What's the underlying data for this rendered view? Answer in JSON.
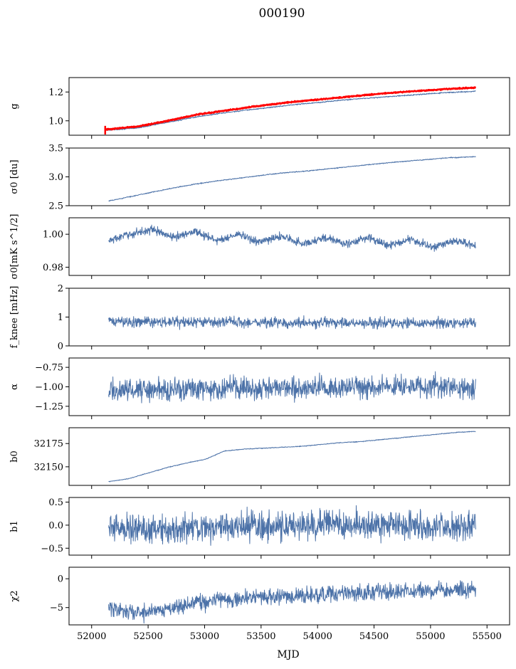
{
  "figure_title": "000190",
  "x_axis": {
    "label": "MJD",
    "range": [
      51800,
      55700
    ],
    "ticks": [
      "52000",
      "52500",
      "53000",
      "53500",
      "54000",
      "54500",
      "55000",
      "55500"
    ]
  },
  "colors": {
    "series": "#4c72a8",
    "fit": "#ff0000",
    "axes": "#000000"
  },
  "chart_data": [
    {
      "type": "line",
      "ylabel": "g",
      "ylim": [
        0.9,
        1.3
      ],
      "yticks": [
        {
          "v": 1.0,
          "label": "1.0"
        },
        {
          "v": 1.2,
          "label": "1.2"
        }
      ],
      "x_start": 52130,
      "x_end": 55400,
      "series": [
        {
          "values": [
            0.935,
            0.95,
            0.99,
            1.03,
            1.06,
            1.085,
            1.11,
            1.13,
            1.15,
            1.165,
            1.18,
            1.195,
            1.205
          ],
          "noise": 0.002
        },
        {
          "values": [
            0.94,
            0.96,
            1.0,
            1.045,
            1.075,
            1.105,
            1.13,
            1.15,
            1.17,
            1.19,
            1.205,
            1.22,
            1.23
          ],
          "noise": 0.002,
          "color": "fit",
          "width": 2.5
        }
      ]
    },
    {
      "type": "line",
      "ylabel": "σ0 [du]",
      "ylim": [
        2.5,
        3.5
      ],
      "yticks": [
        {
          "v": 2.5,
          "label": "2.5"
        },
        {
          "v": 3.0,
          "label": "3.0"
        },
        {
          "v": 3.5,
          "label": "3.5"
        }
      ],
      "x_start": 52150,
      "x_end": 55400,
      "series": [
        {
          "values": [
            2.58,
            2.68,
            2.78,
            2.87,
            2.94,
            3.0,
            3.06,
            3.1,
            3.15,
            3.2,
            3.25,
            3.29,
            3.33,
            3.35
          ],
          "noise": 0.004
        }
      ]
    },
    {
      "type": "line",
      "ylabel": "σ0[mK s^1/2]",
      "ylim": [
        0.975,
        1.01
      ],
      "yticks": [
        {
          "v": 0.98,
          "label": "0.98"
        },
        {
          "v": 1.0,
          "label": "1.00"
        }
      ],
      "x_start": 52150,
      "x_end": 55400,
      "series": [
        {
          "values": [
            0.996,
            1.0,
            1.003,
            0.998,
            1.002,
            0.996,
            1.0,
            0.995,
            0.999,
            0.994,
            0.998,
            0.994,
            0.998,
            0.993,
            0.997,
            0.992,
            0.996,
            0.993
          ],
          "noise": 0.0012
        }
      ]
    },
    {
      "type": "line",
      "ylabel": "f_knee [mHz]",
      "ylim": [
        0,
        2
      ],
      "yticks": [
        {
          "v": 0,
          "label": "0"
        },
        {
          "v": 1,
          "label": "1"
        },
        {
          "v": 2,
          "label": "2"
        }
      ],
      "x_start": 52150,
      "x_end": 55400,
      "series": [
        {
          "values": [
            0.85,
            0.83,
            0.82,
            0.82,
            0.81,
            0.8,
            0.8,
            0.79,
            0.79,
            0.78
          ],
          "noise": 0.09
        }
      ]
    },
    {
      "type": "line",
      "ylabel": "α",
      "ylim": [
        -1.37,
        -0.63
      ],
      "yticks": [
        {
          "v": -1.25,
          "label": "−1.25"
        },
        {
          "v": -1.0,
          "label": "−1.00"
        },
        {
          "v": -0.75,
          "label": "−0.75"
        }
      ],
      "x_start": 52150,
      "x_end": 55400,
      "series": [
        {
          "values": [
            -1.05,
            -1.03,
            -1.02,
            -1.0,
            -1.01,
            -1.0,
            -1.0,
            -1.01
          ],
          "noise": 0.07
        }
      ]
    },
    {
      "type": "line",
      "ylabel": "b0",
      "ylim": [
        32130,
        32192
      ],
      "yticks": [
        {
          "v": 32150,
          "label": "32150"
        },
        {
          "v": 32175,
          "label": "32175"
        }
      ],
      "x_start": 52150,
      "x_end": 55400,
      "series": [
        {
          "values": [
            32134,
            32137,
            32143,
            32149,
            32154,
            32158,
            32167,
            32169,
            32170,
            32171,
            32172,
            32174,
            32176,
            32177,
            32179,
            32181,
            32183,
            32185,
            32187,
            32188
          ],
          "noise": 0.2
        }
      ]
    },
    {
      "type": "line",
      "ylabel": "b1",
      "ylim": [
        -0.65,
        0.6
      ],
      "yticks": [
        {
          "v": -0.5,
          "label": "−0.5"
        },
        {
          "v": 0.0,
          "label": "0.0"
        },
        {
          "v": 0.5,
          "label": "0.5"
        }
      ],
      "x_start": 52150,
      "x_end": 55400,
      "series": [
        {
          "values": [
            -0.05,
            -0.08,
            -0.06,
            -0.02,
            0.0,
            0.0,
            -0.02,
            -0.03
          ],
          "noise": 0.15
        }
      ]
    },
    {
      "type": "line",
      "ylabel": "χ2",
      "ylim": [
        -8,
        2
      ],
      "yticks": [
        {
          "v": -5,
          "label": "−5"
        },
        {
          "v": 0,
          "label": "0"
        }
      ],
      "x_start": 52150,
      "x_end": 55400,
      "series": [
        {
          "values": [
            -5.0,
            -6.0,
            -5.0,
            -4.0,
            -3.5,
            -3.2,
            -3.0,
            -2.8,
            -2.5,
            -2.3,
            -2.2,
            -2.0,
            -2.0
          ],
          "noise": 0.7
        }
      ]
    }
  ]
}
